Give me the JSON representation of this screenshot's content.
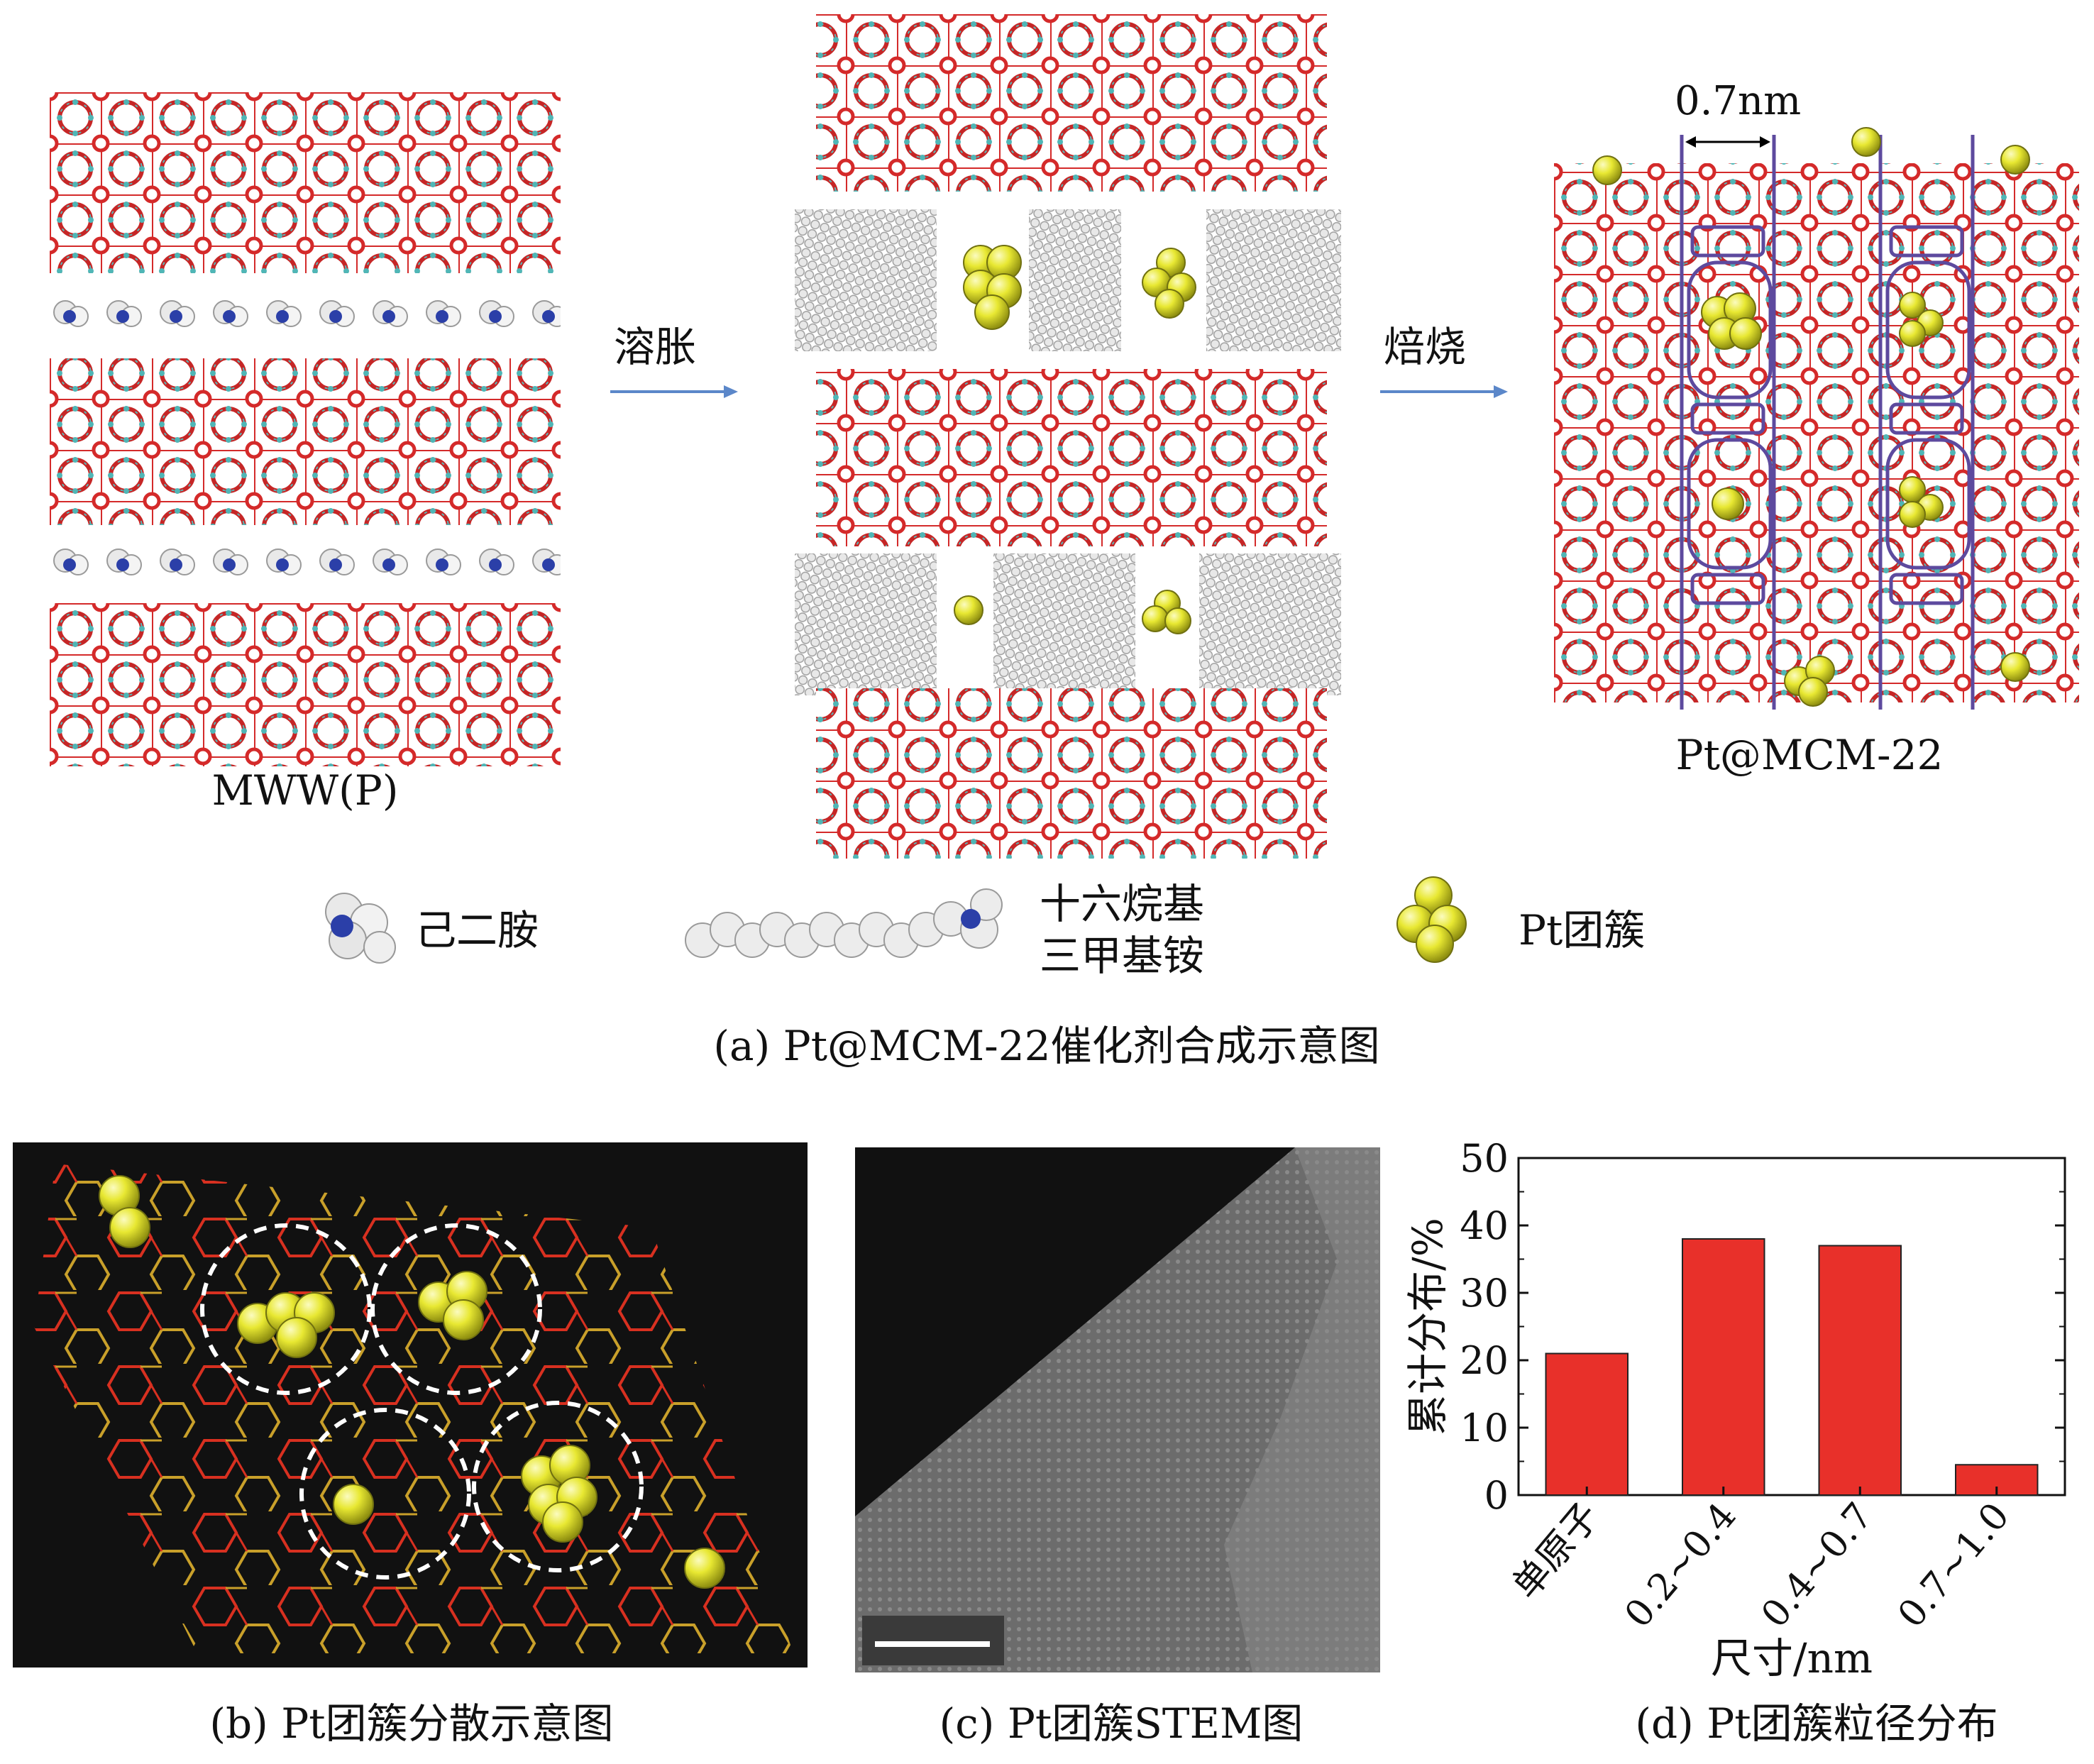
{
  "panel_a": {
    "stage1_label": "MWW(P)",
    "arrow1_label": "溶胀",
    "arrow2_label": "焙烧",
    "stage3_label": "Pt@MCM-22",
    "pore_size_label": "0.7nm",
    "legend": {
      "item1": "己二胺",
      "item2_line1": "十六烷基",
      "item2_line2": "三甲基铵",
      "item3": "Pt团簇"
    },
    "caption": "(a) Pt@MCM-22催化剂合成示意图"
  },
  "panel_b": {
    "caption": "(b) Pt团簇分散示意图"
  },
  "panel_c": {
    "caption": "(c) Pt团簇STEM图"
  },
  "panel_d": {
    "caption": "(d) Pt团簇粒径分布"
  },
  "colors": {
    "framework_red": "#d42a2a",
    "framework_cyan": "#4fb6b6",
    "pt_yellow": "#e5e52a",
    "nitrogen_blue": "#2b3fa8",
    "bar_red": "#e8302a",
    "arrow_blue": "#5b87c9"
  },
  "chart_data": {
    "type": "bar",
    "categories": [
      "单原子",
      "0.2~0.4",
      "0.4~0.7",
      "0.7~1.0"
    ],
    "values": [
      21,
      38,
      37,
      4.5
    ],
    "ylabel": "累计分布/%",
    "xlabel": "尺寸/nm",
    "ylim": [
      0,
      50
    ],
    "yticks": [
      "0",
      "10",
      "20",
      "30",
      "40",
      "50"
    ]
  }
}
